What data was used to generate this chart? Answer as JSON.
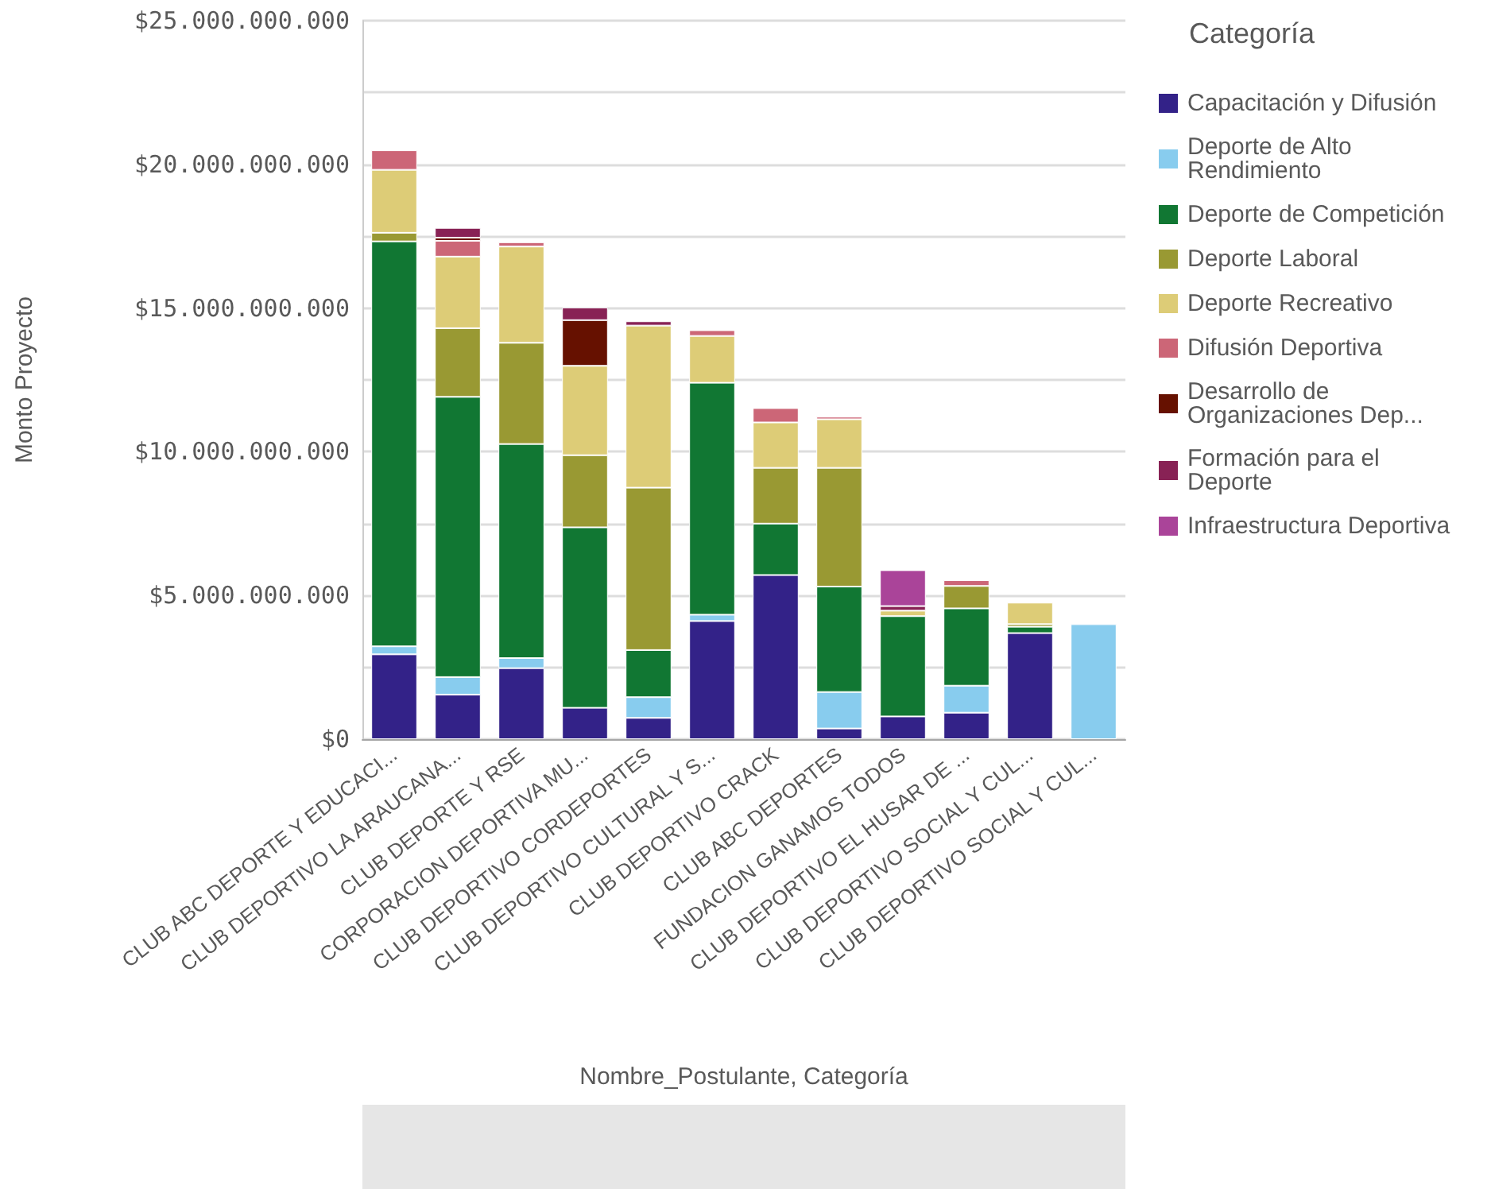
{
  "chart_data": {
    "type": "bar",
    "stacked": true,
    "xlabel": "Nombre_Postulante, Categoría",
    "ylabel": "Monto Proyecto",
    "legend_title": "Categoría",
    "legend": "right",
    "grid": "y",
    "categories": [
      "CLUB ABC DEPORTE Y EDUCACI...",
      "CLUB DEPORTIVO LA ARAUCANA...",
      "CLUB DEPORTE Y RSE",
      "CORPORACION DEPORTIVA MU...",
      "CLUB DEPORTIVO CORDEPORTES",
      "CLUB DEPORTIVO CULTURAL Y S...",
      "CLUB DEPORTIVO CRACK",
      "CLUB ABC DEPORTES",
      "FUNDACION GANAMOS TODOS",
      "CLUB DEPORTIVO EL HUSAR DE ...",
      "CLUB DEPORTIVO SOCIAL Y CUL...",
      "CLUB DEPORTIVO SOCIAL Y CUL..."
    ],
    "ylim": [
      0,
      25000000000
    ],
    "yticks": [
      {
        "value": 0,
        "label": "$0"
      },
      {
        "value": 2500000000,
        "label": null
      },
      {
        "value": 5000000000,
        "label": "$5.000.000.000"
      },
      {
        "value": 7500000000,
        "label": null
      },
      {
        "value": 10000000000,
        "label": "$10.000.000.000"
      },
      {
        "value": 12500000000,
        "label": null
      },
      {
        "value": 15000000000,
        "label": "$15.000.000.000"
      },
      {
        "value": 17500000000,
        "label": null
      },
      {
        "value": 20000000000,
        "label": "$20.000.000.000"
      },
      {
        "value": 22500000000,
        "label": null
      },
      {
        "value": 25000000000,
        "label": "$25.000.000.000"
      }
    ],
    "series": [
      {
        "name": "Capacitación y Difusión",
        "color": "#332288",
        "values": [
          2950000000,
          1550000000,
          2470000000,
          1090000000,
          740000000,
          4110000000,
          5710000000,
          370000000,
          790000000,
          920000000,
          3690000000,
          null
        ]
      },
      {
        "name": "Deporte de Alto Rendimiento",
        "color": "#88ccee",
        "values": [
          280000000,
          610000000,
          350000000,
          null,
          720000000,
          220000000,
          null,
          1270000000,
          null,
          940000000,
          null,
          4000000000
        ]
      },
      {
        "name": "Deporte de Competición",
        "color": "#117733",
        "values": [
          14090000000,
          9750000000,
          7450000000,
          6280000000,
          1640000000,
          8070000000,
          1790000000,
          3670000000,
          3490000000,
          2690000000,
          220000000,
          null
        ]
      },
      {
        "name": "Deporte Laboral",
        "color": "#999933",
        "values": [
          300000000,
          2390000000,
          3520000000,
          2510000000,
          5650000000,
          null,
          1940000000,
          4130000000,
          null,
          780000000,
          90000000,
          null
        ]
      },
      {
        "name": "Deporte Recreativo",
        "color": "#ddcc77",
        "values": [
          2190000000,
          2490000000,
          3350000000,
          3110000000,
          5640000000,
          1630000000,
          1580000000,
          1690000000,
          190000000,
          null,
          750000000,
          null
        ]
      },
      {
        "name": "Difusión Deportiva",
        "color": "#cc6677",
        "values": [
          680000000,
          550000000,
          150000000,
          null,
          null,
          200000000,
          500000000,
          90000000,
          null,
          200000000,
          null,
          null
        ]
      },
      {
        "name": "Desarrollo de Organizaciones Dep...",
        "color": "#661100",
        "values": [
          null,
          110000000,
          null,
          1590000000,
          null,
          null,
          null,
          null,
          null,
          null,
          null,
          null
        ]
      },
      {
        "name": "Formación para el Deporte",
        "color": "#882255",
        "values": [
          null,
          340000000,
          null,
          440000000,
          150000000,
          null,
          null,
          null,
          160000000,
          null,
          null,
          null
        ]
      },
      {
        "name": "Infraestructura Deportiva",
        "color": "#aa4499",
        "values": [
          null,
          null,
          null,
          null,
          null,
          null,
          null,
          null,
          1250000000,
          null,
          null,
          null
        ]
      }
    ]
  }
}
